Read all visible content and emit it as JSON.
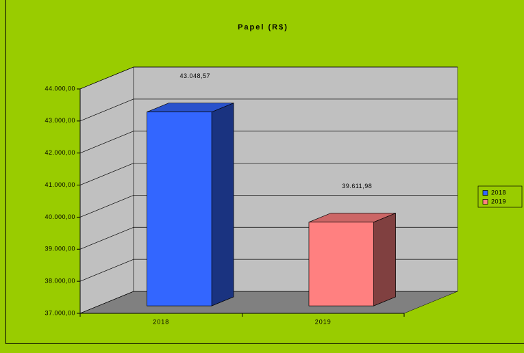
{
  "chart_data": {
    "type": "bar3d",
    "title": "Papel (R$)",
    "categories": [
      "2018",
      "2019"
    ],
    "series": [
      {
        "name": "2018",
        "color": "#3366ff",
        "values": [
          43048.57,
          null
        ],
        "value_labels": [
          "43.048,57",
          null
        ]
      },
      {
        "name": "2019",
        "color": "#ff8080",
        "values": [
          null,
          39611.98
        ],
        "value_labels": [
          null,
          "39.611,98"
        ]
      }
    ],
    "ylim": [
      37000,
      44000
    ],
    "yticks": [
      {
        "value": 37000,
        "label": "37.000,00"
      },
      {
        "value": 38000,
        "label": "38.000,00"
      },
      {
        "value": 39000,
        "label": "39.000,00"
      },
      {
        "value": 40000,
        "label": "40.000,00"
      },
      {
        "value": 41000,
        "label": "41.000,00"
      },
      {
        "value": 42000,
        "label": "42.000,00"
      },
      {
        "value": 43000,
        "label": "43.000,00"
      },
      {
        "value": 44000,
        "label": "44.000,00"
      }
    ],
    "grid": true,
    "legend": "right"
  }
}
